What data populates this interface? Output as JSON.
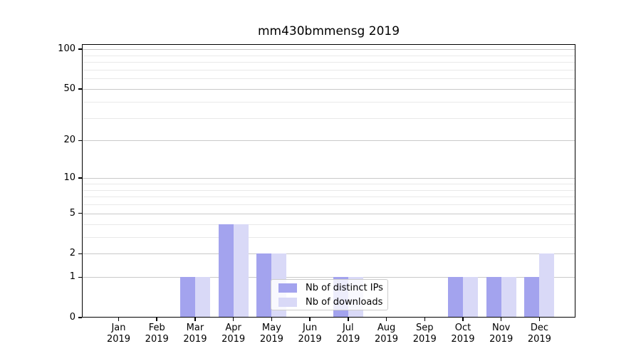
{
  "title": "mm430bmmensg 2019",
  "legend": {
    "items": [
      {
        "label": "Nb of distinct IPs",
        "color": "#a3a3ee"
      },
      {
        "label": "Nb of downloads",
        "color": "#d9d9f7"
      }
    ]
  },
  "chart_data": {
    "type": "bar",
    "title": "mm430bmmensg 2019",
    "x_months": [
      "Jan",
      "Feb",
      "Mar",
      "Apr",
      "May",
      "Jun",
      "Jul",
      "Aug",
      "Sep",
      "Oct",
      "Nov",
      "Dec"
    ],
    "x_year": "2019",
    "series": [
      {
        "name": "Nb of distinct IPs",
        "color": "#a3a3ee",
        "values": [
          0,
          0,
          1,
          4,
          2,
          0,
          1,
          0,
          0,
          1,
          1,
          1
        ]
      },
      {
        "name": "Nb of downloads",
        "color": "#d9d9f7",
        "values": [
          0,
          0,
          1,
          4,
          2,
          0,
          1,
          0,
          0,
          1,
          1,
          2
        ]
      }
    ],
    "yscale": "log1p",
    "ylim": [
      0,
      112
    ],
    "y_major_ticks": [
      0,
      1,
      2,
      5,
      10,
      20,
      50,
      100
    ],
    "y_minor_gridlines": [
      3,
      4,
      6,
      7,
      8,
      9,
      30,
      40,
      60,
      70,
      80,
      90
    ],
    "grid": true,
    "legend_position": "inside-lower-center-right"
  },
  "colors": {
    "grid_major": "#c9c9c9",
    "grid_minor": "#e9e9e9",
    "axis": "#000000",
    "background": "#ffffff",
    "legend_border": "#cccccc"
  }
}
